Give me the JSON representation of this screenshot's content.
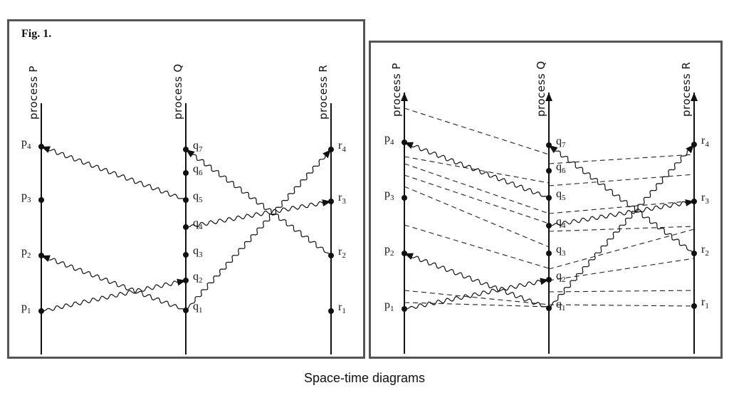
{
  "left_panel": {
    "title": "Fig. 1.",
    "processes": [
      {
        "id": "P",
        "label": "process P"
      },
      {
        "id": "Q",
        "label": "process Q"
      },
      {
        "id": "R",
        "label": "process R"
      }
    ],
    "events": {
      "P": [
        {
          "name": "p",
          "sub": "1"
        },
        {
          "name": "p",
          "sub": "2"
        },
        {
          "name": "p",
          "sub": "3"
        },
        {
          "name": "p",
          "sub": "4"
        }
      ],
      "Q": [
        {
          "name": "q",
          "sub": "1"
        },
        {
          "name": "q",
          "sub": "2"
        },
        {
          "name": "q",
          "sub": "3"
        },
        {
          "name": "q",
          "sub": "4"
        },
        {
          "name": "q",
          "sub": "5"
        },
        {
          "name": "q",
          "sub": "6"
        },
        {
          "name": "q",
          "sub": "7"
        }
      ],
      "R": [
        {
          "name": "r",
          "sub": "1"
        },
        {
          "name": "r",
          "sub": "2"
        },
        {
          "name": "r",
          "sub": "3"
        },
        {
          "name": "r",
          "sub": "4"
        }
      ]
    },
    "messages": [
      {
        "from": "p1",
        "to": "q2"
      },
      {
        "from": "q1",
        "to": "p2"
      },
      {
        "from": "q1",
        "to": "r4"
      },
      {
        "from": "q4",
        "to": "r3"
      },
      {
        "from": "q5",
        "to": "p4"
      },
      {
        "from": "r2",
        "to": "q7"
      }
    ]
  },
  "right_panel": {
    "processes": [
      {
        "id": "P",
        "label": "process P"
      },
      {
        "id": "Q",
        "label": "process Q"
      },
      {
        "id": "R",
        "label": "process R"
      }
    ],
    "events": {
      "P": [
        {
          "name": "p",
          "sub": "1"
        },
        {
          "name": "p",
          "sub": "2"
        },
        {
          "name": "p",
          "sub": "3"
        },
        {
          "name": "p",
          "sub": "4"
        }
      ],
      "Q": [
        {
          "name": "q",
          "sub": "1"
        },
        {
          "name": "q",
          "sub": "2"
        },
        {
          "name": "q",
          "sub": "3"
        },
        {
          "name": "q",
          "sub": "4"
        },
        {
          "name": "q",
          "sub": "5"
        },
        {
          "name": "q",
          "sub": "6"
        },
        {
          "name": "q",
          "sub": "7"
        }
      ],
      "R": [
        {
          "name": "r",
          "sub": "1"
        },
        {
          "name": "r",
          "sub": "2"
        },
        {
          "name": "r",
          "sub": "3"
        },
        {
          "name": "r",
          "sub": "4"
        }
      ]
    },
    "messages": [
      {
        "from": "p1",
        "to": "q2"
      },
      {
        "from": "q1",
        "to": "p2"
      },
      {
        "from": "q1",
        "to": "r4"
      },
      {
        "from": "q4",
        "to": "r3"
      },
      {
        "from": "q5",
        "to": "p4"
      },
      {
        "from": "r2",
        "to": "q7"
      }
    ],
    "tick_lines": "dashed"
  },
  "caption": "Space-time diagrams"
}
